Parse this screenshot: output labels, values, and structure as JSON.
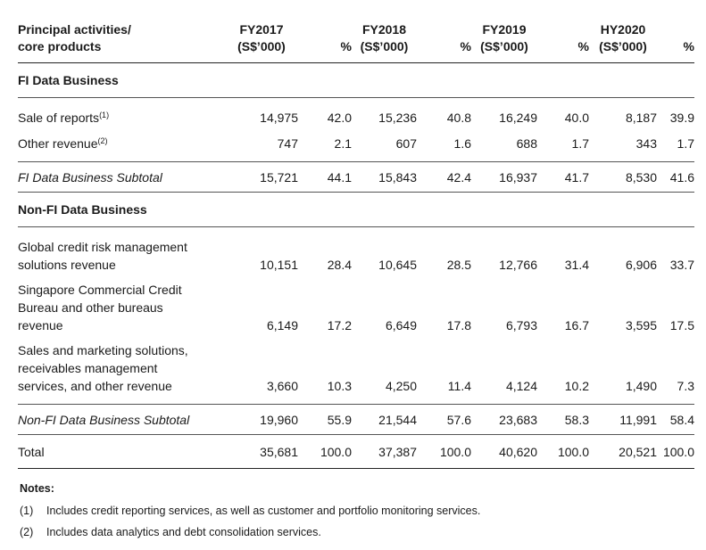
{
  "header": {
    "label": [
      "Principal activities/",
      "core products"
    ],
    "periods": [
      {
        "name": "FY2017",
        "unit": "(S$’000)",
        "pct": "%"
      },
      {
        "name": "FY2018",
        "unit": "(S$’000)",
        "pct": "%"
      },
      {
        "name": "FY2019",
        "unit": "(S$’000)",
        "pct": "%"
      },
      {
        "name": "HY2020",
        "unit": "(S$’000)",
        "pct": "%"
      }
    ]
  },
  "sections": {
    "fi": {
      "title": "FI Data Business",
      "rows": [
        {
          "label": [
            "Sale of reports"
          ],
          "sup": "(1)",
          "values": [
            "14,975",
            "42.0",
            "15,236",
            "40.8",
            "16,249",
            "40.0",
            "8,187",
            "39.9"
          ]
        },
        {
          "label": [
            "Other revenue"
          ],
          "sup": "(2)",
          "values": [
            "747",
            "2.1",
            "607",
            "1.6",
            "688",
            "1.7",
            "343",
            "1.7"
          ]
        }
      ],
      "subtotal": {
        "label": "FI Data Business Subtotal",
        "values": [
          "15,721",
          "44.1",
          "15,843",
          "42.4",
          "16,937",
          "41.7",
          "8,530",
          "41.6"
        ]
      }
    },
    "nonfi": {
      "title": "Non-FI Data Business",
      "rows": [
        {
          "label": [
            "Global credit risk management",
            "solutions revenue"
          ],
          "values": [
            "10,151",
            "28.4",
            "10,645",
            "28.5",
            "12,766",
            "31.4",
            "6,906",
            "33.7"
          ]
        },
        {
          "label": [
            "Singapore Commercial Credit",
            "Bureau and other bureaus",
            "revenue"
          ],
          "values": [
            "6,149",
            "17.2",
            "6,649",
            "17.8",
            "6,793",
            "16.7",
            "3,595",
            "17.5"
          ]
        },
        {
          "label": [
            "Sales and marketing solutions,",
            "receivables management",
            "services, and other revenue"
          ],
          "values": [
            "3,660",
            "10.3",
            "4,250",
            "11.4",
            "4,124",
            "10.2",
            "1,490",
            "7.3"
          ]
        }
      ],
      "subtotal": {
        "label": "Non-FI Data Business Subtotal",
        "values": [
          "19,960",
          "55.9",
          "21,544",
          "57.6",
          "23,683",
          "58.3",
          "11,991",
          "58.4"
        ]
      }
    }
  },
  "total": {
    "label": "Total",
    "values": [
      "35,681",
      "100.0",
      "37,387",
      "100.0",
      "40,620",
      "100.0",
      "20,521",
      "100.0"
    ]
  },
  "notes": {
    "title": "Notes:",
    "items": [
      {
        "marker": "(1)",
        "text": "Includes credit reporting services, as well as customer and portfolio monitoring services."
      },
      {
        "marker": "(2)",
        "text": "Includes data analytics and debt consolidation services."
      }
    ]
  }
}
